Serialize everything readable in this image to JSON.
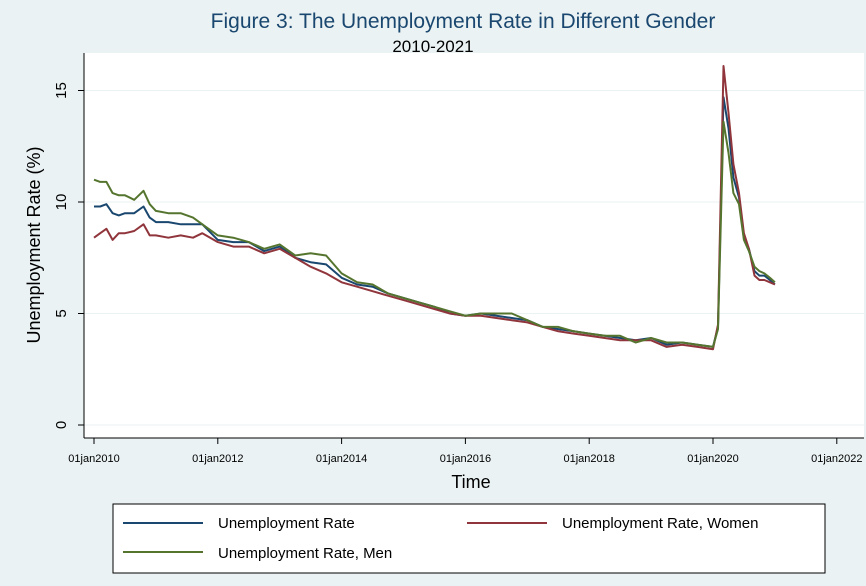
{
  "chart_data": {
    "type": "line",
    "title": "Figure 3:  The Unemployment Rate in Different Gender",
    "subtitle": "2010-2021",
    "xlabel": "Time",
    "ylabel": "Unemployment Rate (%)",
    "xlim": [
      2010.0,
      2022.0
    ],
    "ylim": [
      0,
      16.5
    ],
    "yticks": [
      0,
      5,
      10,
      15
    ],
    "ytick_labels": [
      "0",
      "5",
      "10",
      "15"
    ],
    "xticks": [
      2010,
      2012,
      2014,
      2016,
      2018,
      2020,
      2022
    ],
    "xtick_labels": [
      "01jan2010",
      "01jan2012",
      "01jan2014",
      "01jan2016",
      "01jan2018",
      "01jan2020",
      "01jan2022"
    ],
    "grid": true,
    "legend_position": "bottom",
    "series": [
      {
        "name": "Unemployment Rate",
        "color": "#1a476f",
        "x": [
          2010.0,
          2010.1,
          2010.2,
          2010.3,
          2010.4,
          2010.5,
          2010.65,
          2010.8,
          2010.9,
          2011.0,
          2011.2,
          2011.4,
          2011.6,
          2011.75,
          2012.0,
          2012.25,
          2012.5,
          2012.75,
          2013.0,
          2013.25,
          2013.5,
          2013.75,
          2014.0,
          2014.25,
          2014.5,
          2014.75,
          2015.0,
          2015.25,
          2015.5,
          2015.75,
          2016.0,
          2016.25,
          2016.5,
          2016.75,
          2017.0,
          2017.25,
          2017.5,
          2017.75,
          2018.0,
          2018.25,
          2018.5,
          2018.75,
          2019.0,
          2019.25,
          2019.5,
          2019.75,
          2020.0,
          2020.08,
          2020.17,
          2020.25,
          2020.33,
          2020.42,
          2020.5,
          2020.58,
          2020.67,
          2020.75,
          2020.83,
          2020.92,
          2021.0
        ],
        "values": [
          9.8,
          9.8,
          9.9,
          9.5,
          9.4,
          9.5,
          9.5,
          9.8,
          9.3,
          9.1,
          9.1,
          9.0,
          9.0,
          9.0,
          8.3,
          8.2,
          8.2,
          7.8,
          8.0,
          7.5,
          7.3,
          7.2,
          6.6,
          6.3,
          6.2,
          5.9,
          5.7,
          5.5,
          5.3,
          5.0,
          4.9,
          5.0,
          4.9,
          4.8,
          4.7,
          4.4,
          4.3,
          4.2,
          4.1,
          4.0,
          3.9,
          3.8,
          3.9,
          3.6,
          3.7,
          3.6,
          3.5,
          4.4,
          14.7,
          13.3,
          11.1,
          10.2,
          8.4,
          7.9,
          6.9,
          6.7,
          6.7,
          6.5,
          6.3
        ]
      },
      {
        "name": "Unemployment Rate, Women",
        "color": "#90353b",
        "x": [
          2010.0,
          2010.1,
          2010.2,
          2010.3,
          2010.4,
          2010.5,
          2010.65,
          2010.8,
          2010.9,
          2011.0,
          2011.2,
          2011.4,
          2011.6,
          2011.75,
          2012.0,
          2012.25,
          2012.5,
          2012.75,
          2013.0,
          2013.25,
          2013.5,
          2013.75,
          2014.0,
          2014.25,
          2014.5,
          2014.75,
          2015.0,
          2015.25,
          2015.5,
          2015.75,
          2016.0,
          2016.25,
          2016.5,
          2016.75,
          2017.0,
          2017.25,
          2017.5,
          2017.75,
          2018.0,
          2018.25,
          2018.5,
          2018.75,
          2019.0,
          2019.25,
          2019.5,
          2019.75,
          2020.0,
          2020.08,
          2020.17,
          2020.25,
          2020.33,
          2020.42,
          2020.5,
          2020.58,
          2020.67,
          2020.75,
          2020.83,
          2020.92,
          2021.0
        ],
        "values": [
          8.4,
          8.6,
          8.8,
          8.3,
          8.6,
          8.6,
          8.7,
          9.0,
          8.5,
          8.5,
          8.4,
          8.5,
          8.4,
          8.6,
          8.2,
          8.0,
          8.0,
          7.7,
          7.9,
          7.5,
          7.1,
          6.8,
          6.4,
          6.2,
          6.0,
          5.8,
          5.6,
          5.4,
          5.2,
          5.0,
          4.9,
          4.9,
          4.8,
          4.7,
          4.6,
          4.4,
          4.2,
          4.1,
          4.0,
          3.9,
          3.8,
          3.8,
          3.8,
          3.5,
          3.6,
          3.5,
          3.4,
          4.5,
          16.1,
          14.0,
          11.7,
          10.4,
          8.6,
          7.9,
          6.7,
          6.5,
          6.5,
          6.4,
          6.3
        ]
      },
      {
        "name": "Unemployment Rate, Men",
        "color": "#55752f",
        "x": [
          2010.0,
          2010.1,
          2010.2,
          2010.3,
          2010.4,
          2010.5,
          2010.65,
          2010.8,
          2010.9,
          2011.0,
          2011.2,
          2011.4,
          2011.6,
          2011.75,
          2012.0,
          2012.25,
          2012.5,
          2012.75,
          2013.0,
          2013.25,
          2013.5,
          2013.75,
          2014.0,
          2014.25,
          2014.5,
          2014.75,
          2015.0,
          2015.25,
          2015.5,
          2015.75,
          2016.0,
          2016.25,
          2016.5,
          2016.75,
          2017.0,
          2017.25,
          2017.5,
          2017.75,
          2018.0,
          2018.25,
          2018.5,
          2018.75,
          2019.0,
          2019.25,
          2019.5,
          2019.75,
          2020.0,
          2020.08,
          2020.17,
          2020.25,
          2020.33,
          2020.42,
          2020.5,
          2020.58,
          2020.67,
          2020.75,
          2020.83,
          2020.92,
          2021.0
        ],
        "values": [
          11.0,
          10.9,
          10.9,
          10.4,
          10.3,
          10.3,
          10.1,
          10.5,
          9.9,
          9.6,
          9.5,
          9.5,
          9.3,
          9.0,
          8.5,
          8.4,
          8.2,
          7.9,
          8.1,
          7.6,
          7.7,
          7.6,
          6.8,
          6.4,
          6.3,
          5.9,
          5.7,
          5.5,
          5.3,
          5.1,
          4.9,
          5.0,
          5.0,
          5.0,
          4.7,
          4.4,
          4.4,
          4.2,
          4.1,
          4.0,
          4.0,
          3.7,
          3.9,
          3.7,
          3.7,
          3.6,
          3.5,
          4.3,
          13.6,
          12.2,
          10.4,
          9.9,
          8.3,
          7.8,
          7.1,
          6.9,
          6.8,
          6.6,
          6.4
        ]
      }
    ]
  }
}
